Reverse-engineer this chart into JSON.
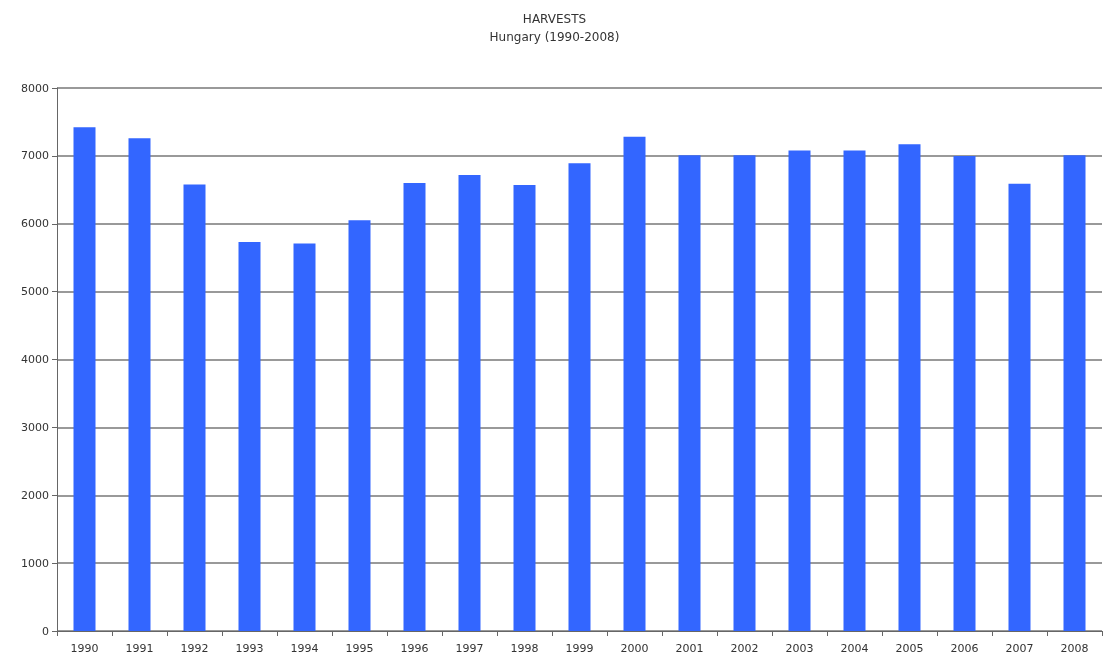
{
  "chart_data": {
    "type": "bar",
    "title": "HARVESTS",
    "subtitle": "Hungary (1990-2008)",
    "categories": [
      "1990",
      "1991",
      "1992",
      "1993",
      "1994",
      "1995",
      "1996",
      "1997",
      "1998",
      "1999",
      "2000",
      "2001",
      "2002",
      "2003",
      "2004",
      "2005",
      "2006",
      "2007",
      "2008"
    ],
    "values": [
      7420,
      7260,
      6580,
      5730,
      5710,
      6050,
      6600,
      6720,
      6570,
      6890,
      7280,
      7010,
      7010,
      7080,
      7080,
      7170,
      7000,
      6590,
      7010
    ],
    "color": "#3366ff",
    "ylim": [
      0,
      8000
    ],
    "yticks": [
      0,
      1000,
      2000,
      3000,
      4000,
      5000,
      6000,
      7000,
      8000
    ],
    "grid": "y"
  }
}
